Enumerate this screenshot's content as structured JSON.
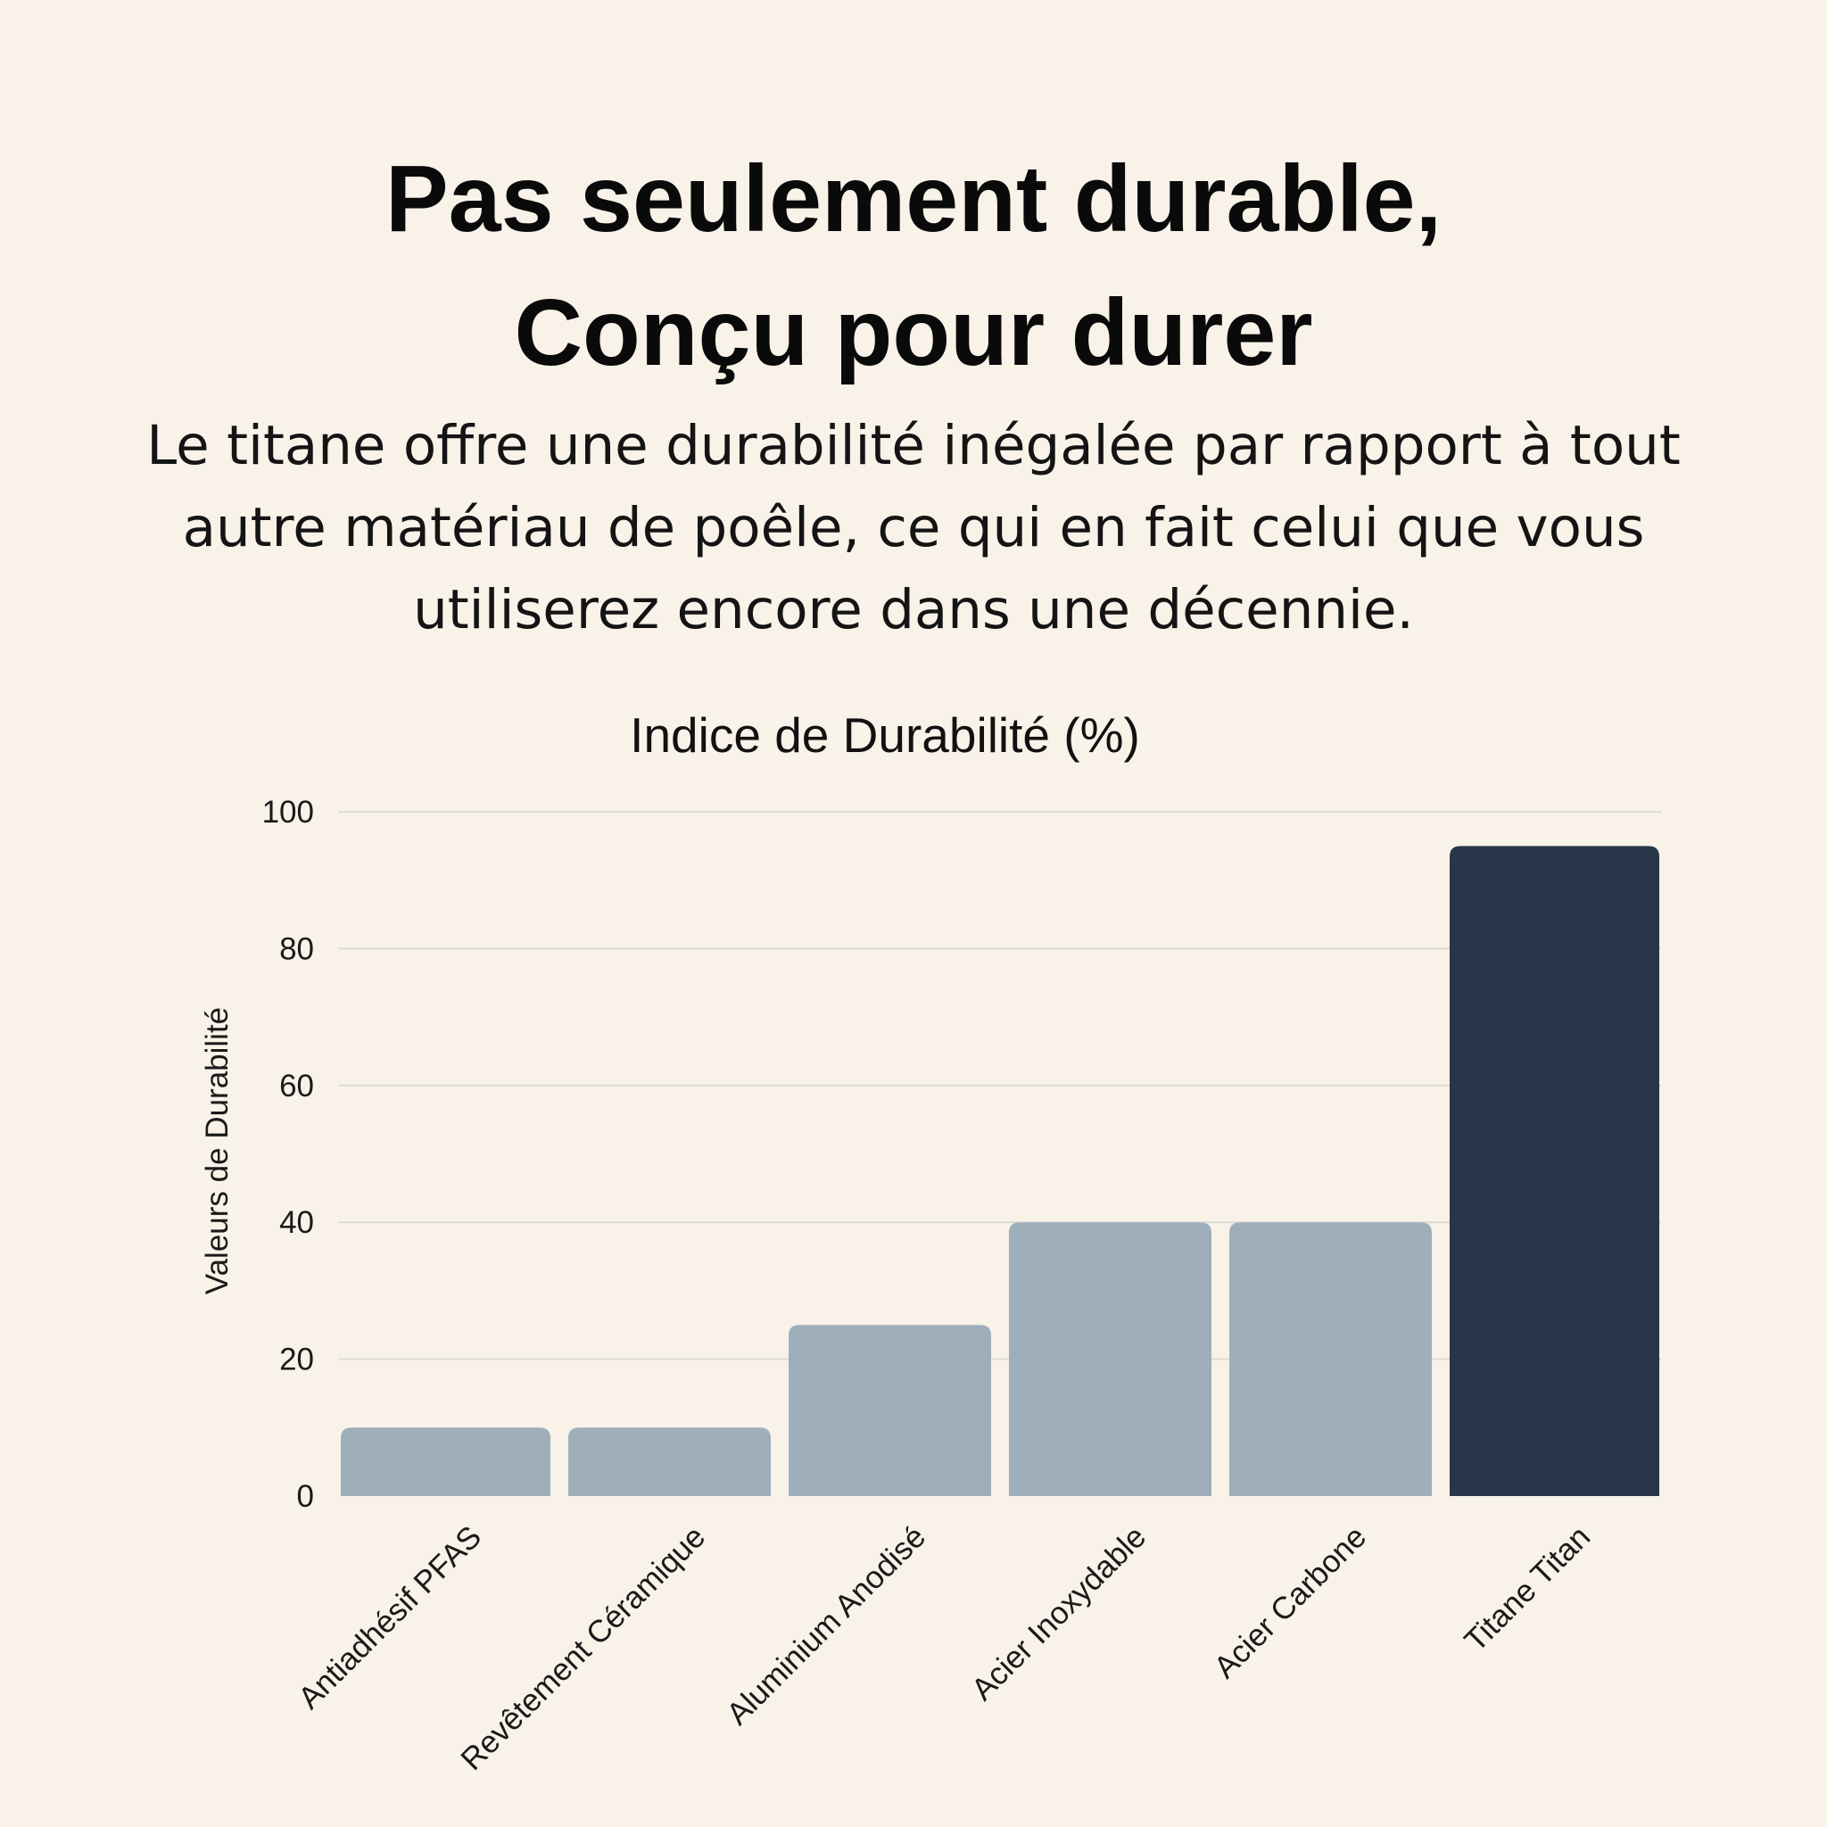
{
  "header": {
    "headline_lines": [
      "Pas seulement durable,",
      "Conçu pour durer"
    ],
    "subtitle_lines": [
      "Le titane offre une durabilité inégalée par rapport à tout",
      "autre matériau de poêle, ce qui en fait celui que vous",
      "utiliserez encore dans une décennie."
    ]
  },
  "chart_data": {
    "type": "bar",
    "title": "Indice de Durabilité (%)",
    "ylabel": "Valeurs de Durabilité",
    "xlabel": "",
    "ylim": [
      0,
      100
    ],
    "yticks": [
      0,
      20,
      40,
      60,
      80,
      100
    ],
    "grid": true,
    "legend": "none",
    "categories": [
      "Antiadhésif PFAS",
      "Revêtement Céramique",
      "Aluminium Anodisé",
      "Acier Inoxydable",
      "Acier Carbone",
      "Titane Titan"
    ],
    "values": [
      10,
      10,
      25,
      40,
      40,
      95
    ],
    "colors": [
      "#9faebb",
      "#9faebb",
      "#9faebb",
      "#9faebb",
      "#9faebb",
      "#28364a"
    ]
  }
}
